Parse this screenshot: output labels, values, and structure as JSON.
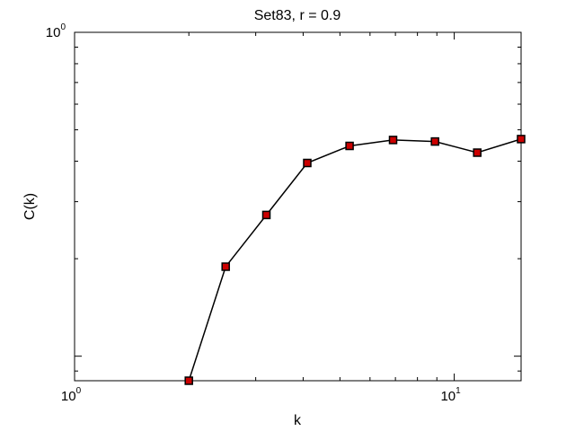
{
  "chart_data": {
    "type": "line",
    "title": "Set83, r = 0.9",
    "xlabel": "k",
    "ylabel": "C(k)",
    "x_scale": "log",
    "y_scale": "log",
    "xlim": [
      1,
      15
    ],
    "ylim": [
      0.084,
      1
    ],
    "grid": false,
    "x_ticks": [
      {
        "value": 1,
        "base": "10",
        "exp": "0"
      },
      {
        "value": 10,
        "base": "10",
        "exp": "1"
      }
    ],
    "y_ticks": [
      {
        "value": 1,
        "base": "10",
        "exp": "0"
      }
    ],
    "series": [
      {
        "marker": "square",
        "line_color": "#000000",
        "marker_color": "#cc0000",
        "x": [
          2.0,
          2.5,
          3.2,
          4.1,
          5.3,
          6.9,
          8.9,
          11.5,
          15.0
        ],
        "y": [
          0.084,
          0.189,
          0.273,
          0.395,
          0.446,
          0.465,
          0.46,
          0.425,
          0.468
        ]
      }
    ]
  }
}
